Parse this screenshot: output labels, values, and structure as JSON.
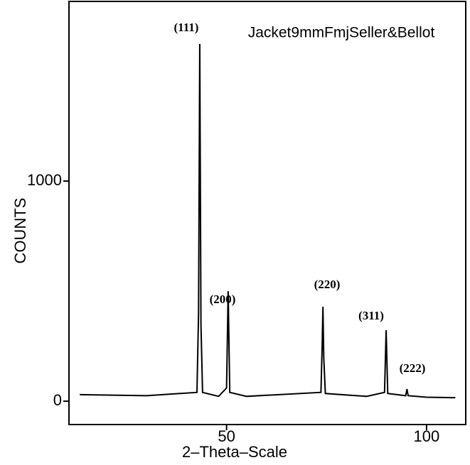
{
  "chart_data": {
    "type": "line",
    "title": "Jacket9mmFmjSeller&Bellot",
    "x_label": "2–Theta–Scale",
    "y_label": "COUNTS",
    "x": [
      13.3,
      30,
      42.6,
      43.0,
      43.3,
      43.6,
      44.0,
      48,
      50.0,
      50.4,
      50.8,
      55,
      73.6,
      73.9,
      74.1,
      74.3,
      74.7,
      85,
      89.5,
      89.9,
      90.3,
      94.8,
      95.1,
      95.4,
      100,
      107.2
    ],
    "series": [
      {
        "color": "#000000",
        "values": [
          30,
          25,
          40,
          400,
          1623,
          350,
          40,
          22,
          60,
          500,
          40,
          22,
          40,
          250,
          429,
          200,
          35,
          22,
          40,
          323,
          35,
          25,
          55,
          25,
          18,
          16
        ]
      }
    ],
    "annotations": [
      "(111)",
      "(200)",
      "(220)",
      "(311)",
      "(222)"
    ],
    "xlim": [
      10.6,
      109.8
    ],
    "ylim": [
      -106,
      1816
    ],
    "xticks": [
      50,
      100
    ],
    "yticks": [
      0,
      1000
    ]
  }
}
